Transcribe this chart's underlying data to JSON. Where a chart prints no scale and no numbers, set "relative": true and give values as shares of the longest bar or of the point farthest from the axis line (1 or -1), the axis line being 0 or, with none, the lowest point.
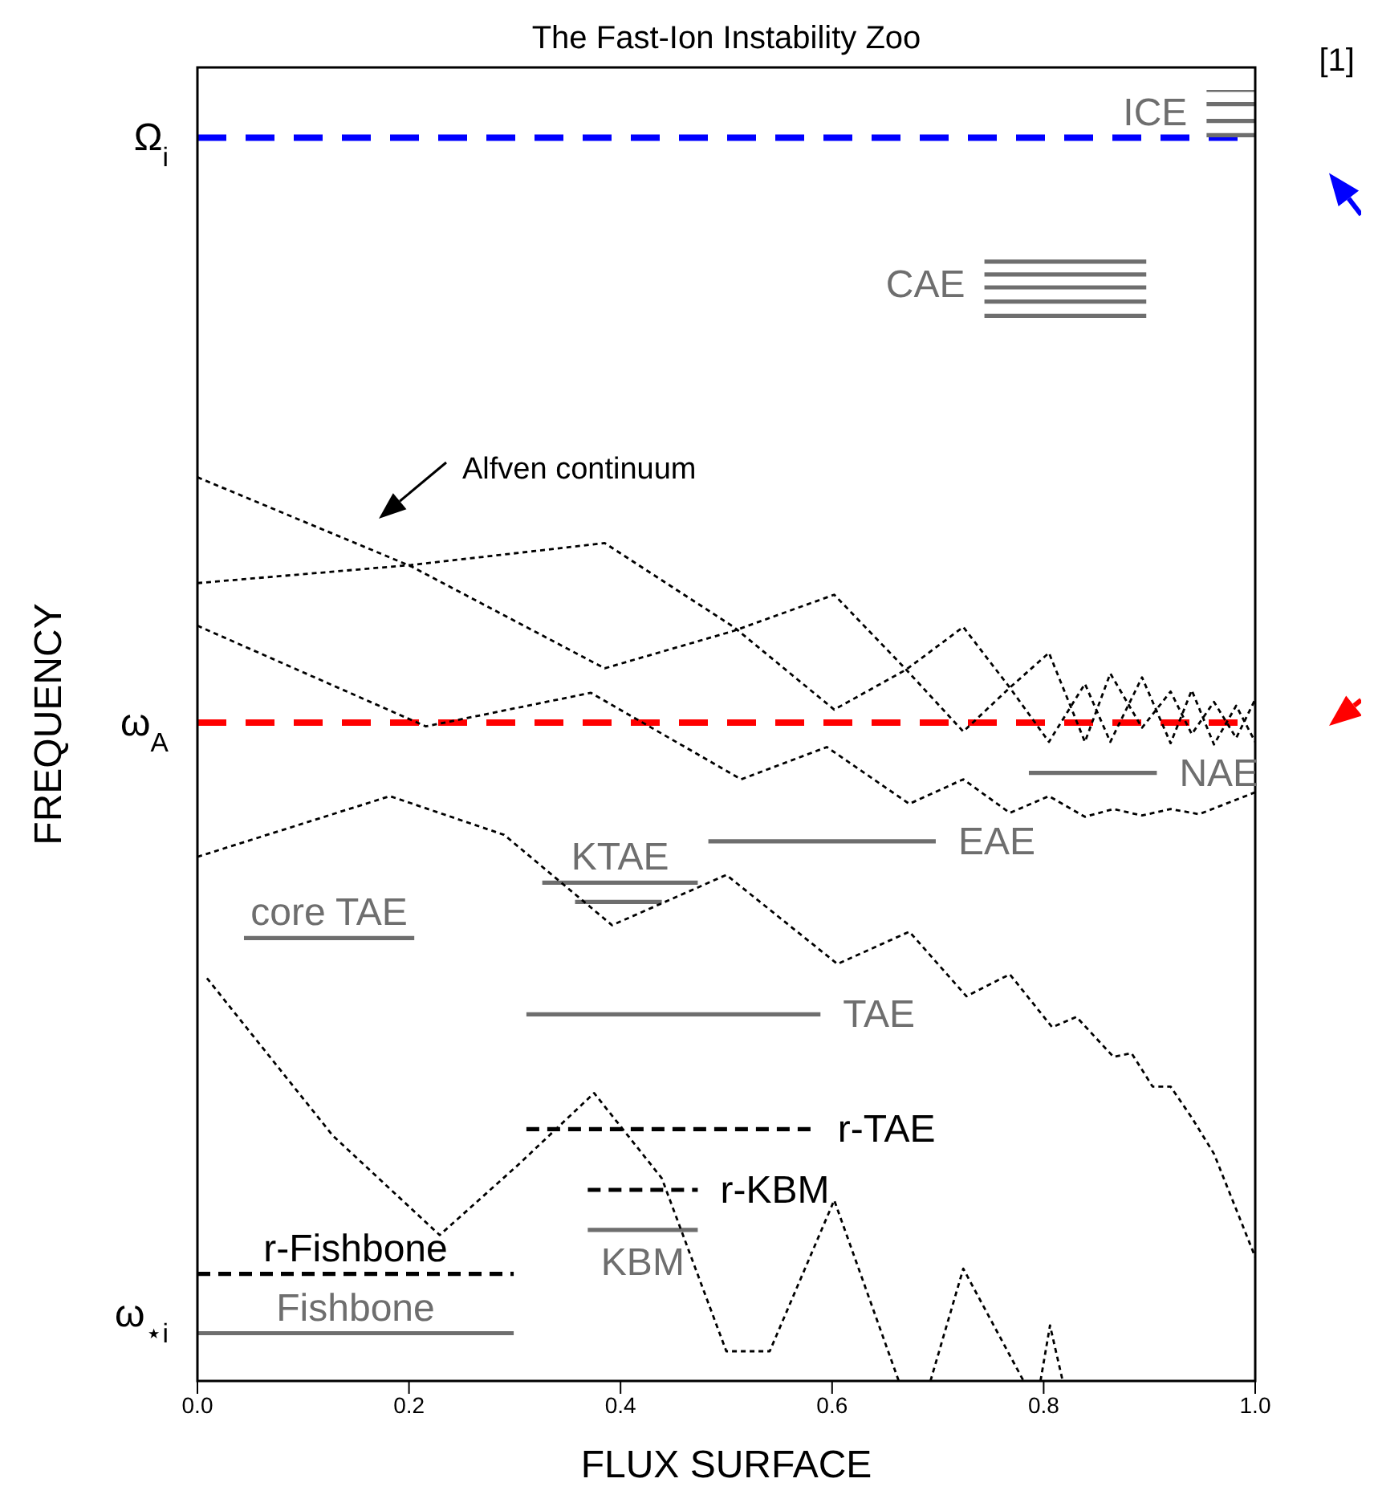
{
  "chart_data": {
    "type": "line",
    "title": "The Fast-Ion Instability Zoo",
    "xlabel": "FLUX SURFACE",
    "ylabel": "FREQUENCY",
    "relative": true,
    "marker": "none",
    "xlim": [
      0,
      1
    ],
    "xticks": [
      {
        "value": 0,
        "label": "0.0"
      },
      0.2,
      0.4,
      0.6,
      0.8,
      {
        "value": 1,
        "label": "1.0"
      }
    ],
    "ref_lines": [
      {
        "axis": "y",
        "value": 0.963,
        "label": "Ω$_{i}$",
        "color": "#0000ff",
        "line_style": "dashed"
      },
      {
        "axis": "y",
        "value": 0.51,
        "label": "ω$_{A}$",
        "color": "#ff0000",
        "line_style": "dashed"
      }
    ],
    "annotations": [
      "[1]",
      "Alfven continuum",
      "ω$_{⋆i}$"
    ],
    "series": [
      {
        "name": "ICE",
        "color": "#6e6e6e",
        "line_style": "solid",
        "x": [
          0.954,
          1.0
        ],
        "values": [
          1.0,
          1.0
        ]
      },
      {
        "color": "#6e6e6e",
        "line_style": "solid",
        "x": [
          0.954,
          1.0
        ],
        "values": [
          0.989,
          0.989
        ]
      },
      {
        "color": "#6e6e6e",
        "line_style": "solid",
        "x": [
          0.954,
          1.0
        ],
        "values": [
          0.976,
          0.976
        ]
      },
      {
        "color": "#6e6e6e",
        "line_style": "solid",
        "x": [
          0.954,
          1.0
        ],
        "values": [
          0.965,
          0.965
        ]
      },
      {
        "name": "CAE",
        "color": "#6e6e6e",
        "line_style": "solid",
        "x": [
          0.744,
          0.897
        ],
        "values": [
          0.867,
          0.867
        ]
      },
      {
        "color": "#6e6e6e",
        "line_style": "solid",
        "x": [
          0.744,
          0.897
        ],
        "values": [
          0.857,
          0.857
        ]
      },
      {
        "color": "#6e6e6e",
        "line_style": "solid",
        "x": [
          0.744,
          0.897
        ],
        "values": [
          0.847,
          0.847
        ]
      },
      {
        "color": "#6e6e6e",
        "line_style": "solid",
        "x": [
          0.744,
          0.897
        ],
        "values": [
          0.836,
          0.836
        ]
      },
      {
        "color": "#6e6e6e",
        "line_style": "solid",
        "x": [
          0.744,
          0.897
        ],
        "values": [
          0.825,
          0.825
        ]
      },
      {
        "name": "NAE",
        "color": "#6e6e6e",
        "line_style": "solid",
        "x": [
          0.786,
          0.907
        ],
        "values": [
          0.471,
          0.471
        ]
      },
      {
        "name": "EAE",
        "color": "#6e6e6e",
        "line_style": "solid",
        "x": [
          0.483,
          0.698
        ],
        "values": [
          0.418,
          0.418
        ]
      },
      {
        "name": "KTAE",
        "color": "#6e6e6e",
        "line_style": "solid",
        "x": [
          0.326,
          0.473
        ],
        "values": [
          0.386,
          0.386
        ]
      },
      {
        "color": "#6e6e6e",
        "line_style": "solid",
        "x": [
          0.357,
          0.439
        ],
        "values": [
          0.371,
          0.371
        ]
      },
      {
        "name": "core TAE",
        "color": "#6e6e6e",
        "line_style": "solid",
        "x": [
          0.044,
          0.205
        ],
        "values": [
          0.343,
          0.343
        ]
      },
      {
        "name": "TAE",
        "color": "#6e6e6e",
        "line_style": "solid",
        "x": [
          0.311,
          0.589
        ],
        "values": [
          0.284,
          0.284
        ]
      },
      {
        "name": "r-TAE",
        "color": "#000000",
        "line_style": "dashed",
        "x": [
          0.311,
          0.584
        ],
        "values": [
          0.195,
          0.195
        ]
      },
      {
        "name": "r-KBM",
        "color": "#000000",
        "line_style": "dashed",
        "x": [
          0.369,
          0.473
        ],
        "values": [
          0.148,
          0.148
        ]
      },
      {
        "name": "KBM",
        "color": "#6e6e6e",
        "line_style": "solid",
        "x": [
          0.369,
          0.473
        ],
        "values": [
          0.117,
          0.117
        ]
      },
      {
        "name": "r-Fishbone",
        "color": "#000000",
        "line_style": "dashed",
        "x": [
          0,
          0.299
        ],
        "values": [
          0.083,
          0.083
        ]
      },
      {
        "name": "Fishbone",
        "color": "#6e6e6e",
        "line_style": "solid",
        "x": [
          0,
          0.299
        ],
        "values": [
          0.037,
          0.037
        ]
      },
      {
        "color": "#000000",
        "line_style": "dotted",
        "x": [
          0,
          0.202,
          0.385,
          0.507,
          0.602,
          0.67,
          0.724,
          0.768,
          0.805,
          0.839,
          0.863,
          0.893,
          0.92,
          0.94,
          0.961,
          0.982,
          1.0
        ],
        "values": [
          0.7,
          0.631,
          0.552,
          0.581,
          0.609,
          0.551,
          0.503,
          0.537,
          0.564,
          0.495,
          0.548,
          0.506,
          0.534,
          0.501,
          0.526,
          0.498,
          0.528
        ]
      },
      {
        "color": "#000000",
        "line_style": "dotted",
        "x": [
          0,
          0.202,
          0.385,
          0.507,
          0.602,
          0.67,
          0.724,
          0.768,
          0.805,
          0.839,
          0.863,
          0.893,
          0.92,
          0.94,
          0.961,
          0.982,
          1.0
        ],
        "values": [
          0.618,
          0.632,
          0.649,
          0.584,
          0.52,
          0.551,
          0.584,
          0.537,
          0.495,
          0.54,
          0.495,
          0.545,
          0.494,
          0.535,
          0.493,
          0.523,
          0.495
        ]
      },
      {
        "color": "#000000",
        "line_style": "dotted",
        "x": [
          0,
          0.216,
          0.372,
          0.514,
          0.595,
          0.673,
          0.724,
          0.768,
          0.805,
          0.839,
          0.866,
          0.893,
          0.92,
          0.947,
          1.0
        ],
        "values": [
          0.585,
          0.507,
          0.533,
          0.466,
          0.491,
          0.447,
          0.466,
          0.44,
          0.453,
          0.437,
          0.443,
          0.438,
          0.443,
          0.439,
          0.456
        ]
      },
      {
        "color": "#000000",
        "line_style": "dotted",
        "x": [
          0,
          0.182,
          0.29,
          0.392,
          0.5,
          0.605,
          0.673,
          0.727,
          0.768,
          0.808,
          0.831,
          0.866,
          0.883,
          0.903,
          0.92,
          0.94,
          0.961,
          1.0
        ],
        "values": [
          0.406,
          0.453,
          0.423,
          0.353,
          0.392,
          0.323,
          0.348,
          0.298,
          0.315,
          0.274,
          0.282,
          0.251,
          0.254,
          0.228,
          0.228,
          0.204,
          0.176,
          0.096
        ]
      },
      {
        "color": "#000000",
        "line_style": "dotted",
        "x": [
          0.009,
          0.128,
          0.229,
          0.304,
          0.375,
          0.439,
          0.5,
          0.541,
          0.602,
          0.663,
          0.678,
          0.693,
          0.724,
          0.781,
          0.79,
          0.797,
          0.806,
          0.818
        ],
        "values": [
          0.312,
          0.19,
          0.113,
          0.168,
          0.223,
          0.157,
          0.023,
          0.023,
          0.14,
          0,
          null,
          0,
          0.087,
          0,
          null,
          0,
          0.043,
          0
        ]
      }
    ]
  }
}
